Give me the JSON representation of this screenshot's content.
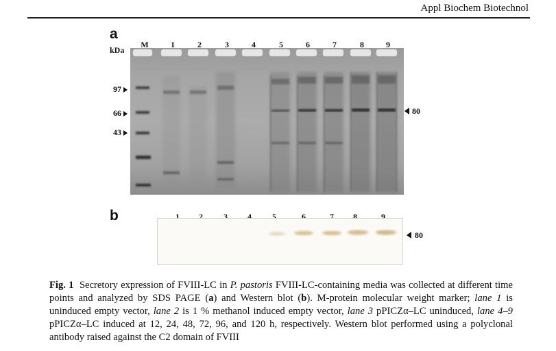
{
  "header": {
    "journal": "Appl Biochem Biotechnol"
  },
  "panel_a": {
    "letter": "a",
    "unit_label": "kDa",
    "lanes": [
      "M",
      "1",
      "2",
      "3",
      "4",
      "5",
      "6",
      "7",
      "8",
      "9"
    ],
    "markers": [
      "97",
      "66",
      "43"
    ],
    "target_label": "80"
  },
  "panel_b": {
    "letter": "b",
    "lanes": [
      "1",
      "2",
      "3",
      "4",
      "5",
      "6",
      "7",
      "8",
      "9"
    ],
    "target_label": "80"
  },
  "caption": {
    "fig_label": "Fig. 1",
    "s1": "Secretory expression of FVIII-LC in ",
    "s2": "P. pastoris",
    "s3": " FVIII-LC-containing media was collected at different time points and analyzed by SDS PAGE (",
    "s4": "a",
    "s5": ") and Western blot (",
    "s6": "b",
    "s7": "). M-protein molecular weight marker; ",
    "s8": "lane 1",
    "s9": " is uninduced empty vector, ",
    "s10": "lane 2",
    "s11": " is 1 % methanol induced empty vector, ",
    "s12": "lane 3",
    "s13": " pPICZα–LC uninduced, ",
    "s14": "lane 4–9",
    "s15": " pPICZα–LC induced at 12, 24, 48, 72, 96, and 120 h, respectively. Western blot performed using a polyclonal antibody raised against the C2 domain of FVIII"
  }
}
